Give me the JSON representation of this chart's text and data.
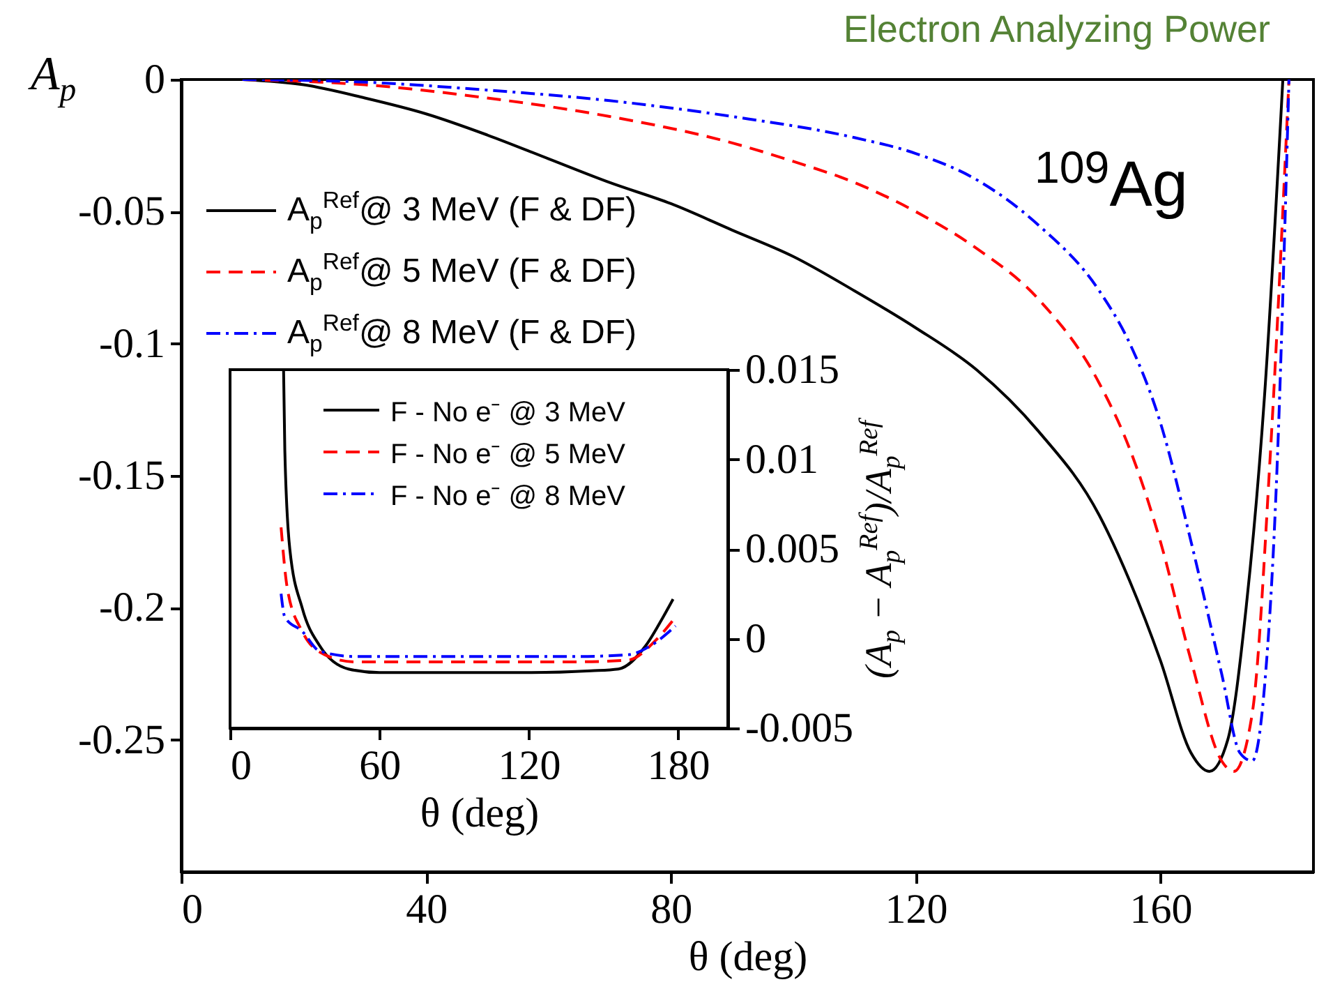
{
  "chart_data": [
    {
      "type": "line",
      "title": "Electron Analyzing Power",
      "xlabel": "θ (deg)",
      "ylabel": "A$_{p}$",
      "annotations": [
        "$^{109}$Ag"
      ],
      "xlim": [
        0,
        185
      ],
      "xticks": [
        0,
        40,
        80,
        120,
        160
      ],
      "ylim": [
        -0.3,
        0
      ],
      "yticks": [
        0,
        -0.05,
        -0.1,
        -0.15,
        -0.2,
        -0.25
      ],
      "legend": "top left",
      "grid": false,
      "series": [
        {
          "name": "A$_{p}$$^{Ref}$@ 3 MeV (F & DF)",
          "color": "#000000",
          "line_style": "solid",
          "x": [
            10,
            20,
            30,
            40,
            50,
            60,
            70,
            80,
            90,
            100,
            110,
            120,
            130,
            140,
            150,
            155,
            160,
            165,
            168,
            171,
            174,
            177,
            180
          ],
          "values": [
            0,
            -0.002,
            -0.007,
            -0.013,
            -0.021,
            -0.03,
            -0.039,
            -0.047,
            -0.057,
            -0.067,
            -0.08,
            -0.094,
            -0.11,
            -0.133,
            -0.165,
            -0.19,
            -0.22,
            -0.255,
            -0.262,
            -0.25,
            -0.2,
            -0.12,
            0
          ]
        },
        {
          "name": "A$_{p}$$^{Ref}$@ 5 MeV (F & DF)",
          "color": "#ff0000",
          "line_style": "dashed",
          "x": [
            10,
            30,
            50,
            70,
            90,
            100,
            110,
            120,
            130,
            140,
            150,
            155,
            160,
            165,
            170,
            172,
            175,
            178,
            181
          ],
          "values": [
            0,
            -0.002,
            -0.007,
            -0.014,
            -0.024,
            -0.031,
            -0.039,
            -0.05,
            -0.064,
            -0.083,
            -0.115,
            -0.14,
            -0.175,
            -0.22,
            -0.258,
            -0.262,
            -0.24,
            -0.14,
            0
          ]
        },
        {
          "name": "A$_{p}$$^{Ref}$@ 8 MeV (F & DF)",
          "color": "#0000ff",
          "line_style": "dashdot",
          "x": [
            10,
            30,
            50,
            70,
            90,
            110,
            120,
            130,
            140,
            150,
            155,
            160,
            165,
            170,
            173,
            175,
            177,
            179,
            181
          ],
          "values": [
            0,
            -0.001,
            -0.004,
            -0.008,
            -0.014,
            -0.022,
            -0.028,
            -0.038,
            -0.055,
            -0.08,
            -0.1,
            -0.13,
            -0.175,
            -0.225,
            -0.255,
            -0.258,
            -0.23,
            -0.15,
            0
          ]
        }
      ]
    },
    {
      "type": "line",
      "xlabel": "θ (deg)",
      "ylabel": "(A$_{p}$ − A$_{p}$$^{Ref}$)/A$_{p}$$^{Ref}$",
      "xlim": [
        0,
        200
      ],
      "xticks": [
        0,
        60,
        120,
        180
      ],
      "ylim": [
        -0.005,
        0.015
      ],
      "yticks": [
        -0.005,
        0,
        0.005,
        0.01,
        0.015
      ],
      "legend": "top right",
      "grid": false,
      "series": [
        {
          "name": "F - No e⁻ @ 3 MeV",
          "color": "#000000",
          "line_style": "solid",
          "x": [
            21.5,
            22,
            24,
            29,
            36,
            47.6,
            60,
            90,
            120,
            145,
            156,
            167,
            174,
            178
          ],
          "values": [
            0.015,
            0.0105,
            0.005,
            0.0017,
            -0.0004,
            -0.0017,
            -0.0019,
            -0.0019,
            -0.0019,
            -0.0018,
            -0.0017,
            -0.0004,
            0.0012,
            0.0022
          ]
        },
        {
          "name": "F - No e⁻ @ 5 MeV",
          "color": "#ff0000",
          "line_style": "dashed",
          "x": [
            20.5,
            23,
            29,
            38,
            50,
            90,
            140,
            160,
            171,
            179
          ],
          "values": [
            0.0062,
            0.0028,
            0.0004,
            -0.0009,
            -0.0013,
            -0.0013,
            -0.0013,
            -0.0012,
            -0.0001,
            0.0012
          ]
        },
        {
          "name": "F - No e⁻ @ 8 MeV",
          "color": "#0000ff",
          "line_style": "dashdot",
          "x": [
            20.5,
            22,
            29,
            36,
            50,
            90,
            140,
            160,
            169,
            179
          ],
          "values": [
            0.0025,
            0.0012,
            0.0004,
            -0.0007,
            -0.001,
            -0.001,
            -0.001,
            -0.0009,
            -0.0004,
            0.0007
          ]
        }
      ]
    }
  ]
}
